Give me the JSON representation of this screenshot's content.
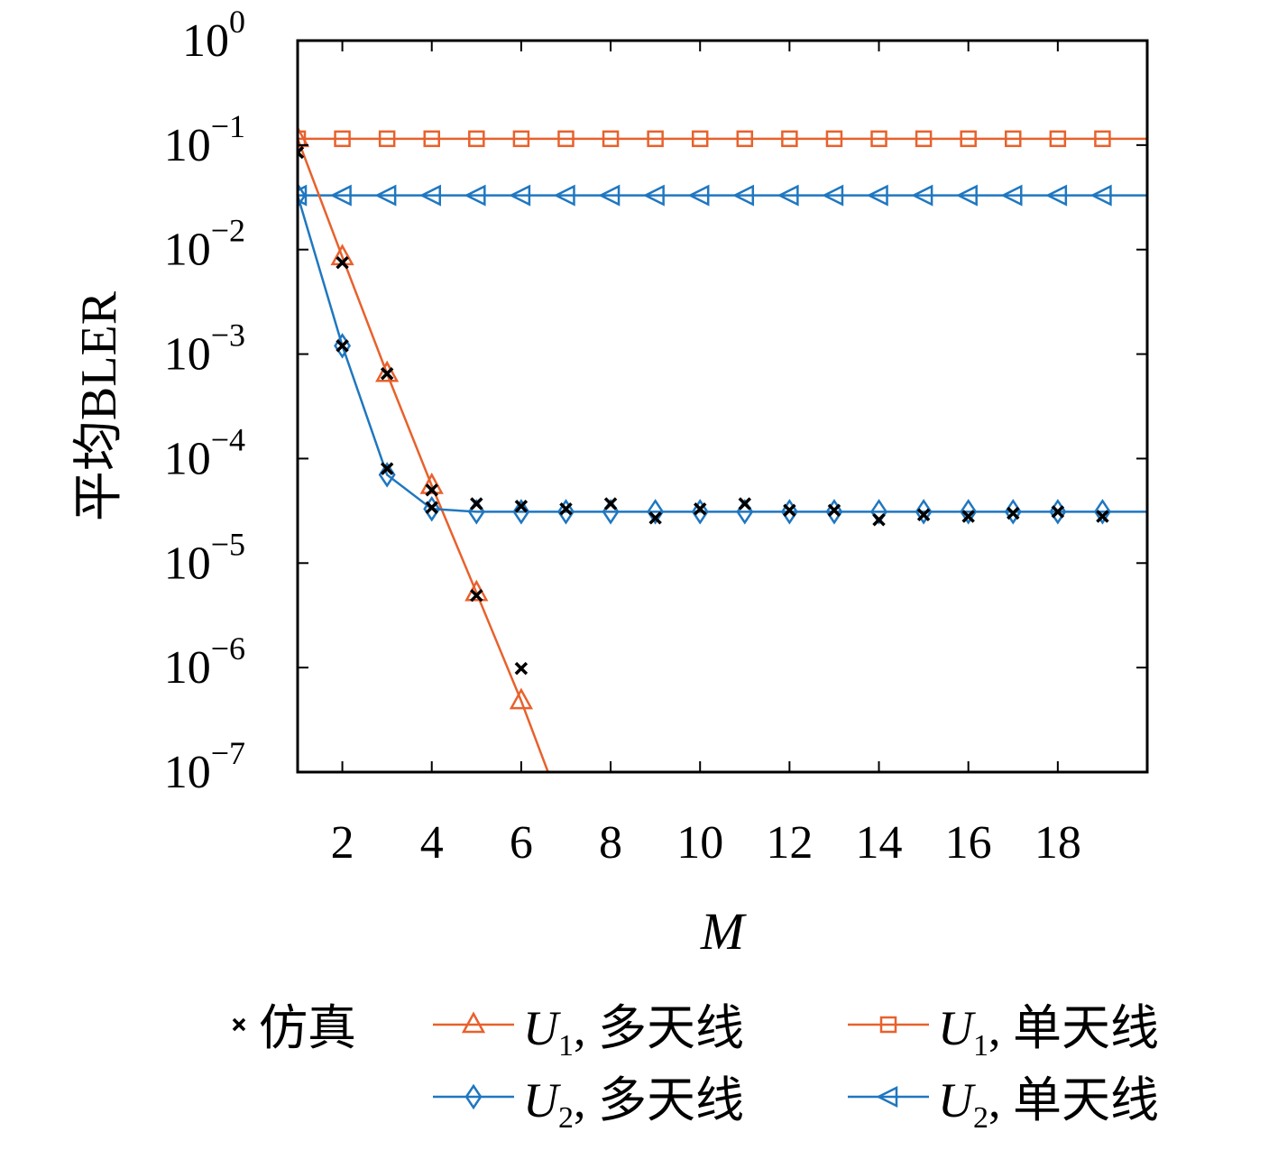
{
  "chart_data": {
    "type": "line",
    "title": "",
    "ylabel": "平均BLER",
    "xlabel": "M",
    "yscale": "log",
    "ylim": [
      1e-07,
      1
    ],
    "xlim": [
      1,
      20
    ],
    "xticks": [
      2,
      4,
      6,
      8,
      10,
      12,
      14,
      16,
      18
    ],
    "xtick_labels": [
      "2",
      "4",
      "6",
      "8",
      "10",
      "12",
      "14",
      "16",
      "18"
    ],
    "yticks": [
      1e-07,
      1e-06,
      1e-05,
      0.0001,
      0.001,
      0.01,
      0.1,
      1
    ],
    "ytick_base": "10",
    "ytick_exponents": [
      "−7",
      "−6",
      "−5",
      "−4",
      "−3",
      "−2",
      "−1",
      "0"
    ],
    "grid": false,
    "legend_position": "bottom",
    "colors": {
      "orange": "#e8612c",
      "blue": "#1f77c0",
      "sim": "#000000"
    },
    "legend": [
      {
        "key": "sim",
        "label": "仿真"
      },
      {
        "key": "u1_multi",
        "sym": "U",
        "sub": "1",
        "label": ", 多天线"
      },
      {
        "key": "u1_single",
        "sym": "U",
        "sub": "1",
        "label": ", 单天线"
      },
      {
        "key": "u2_multi",
        "sym": "U",
        "sub": "2",
        "label": ", 多天线"
      },
      {
        "key": "u2_single",
        "sym": "U",
        "sub": "2",
        "label": ", 单天线"
      }
    ],
    "series": [
      {
        "key": "u1_single",
        "color": "#e8612c",
        "marker": "square",
        "x": [
          1,
          2,
          3,
          4,
          5,
          6,
          7,
          8,
          9,
          10,
          11,
          12,
          13,
          14,
          15,
          16,
          17,
          18,
          19,
          20
        ],
        "y": [
          0.115,
          0.115,
          0.115,
          0.115,
          0.115,
          0.115,
          0.115,
          0.115,
          0.115,
          0.115,
          0.115,
          0.115,
          0.115,
          0.115,
          0.115,
          0.115,
          0.115,
          0.115,
          0.115,
          0.115
        ],
        "marker_x": [
          1,
          2,
          3,
          4,
          5,
          6,
          7,
          8,
          9,
          10,
          11,
          12,
          13,
          14,
          15,
          16,
          17,
          18,
          19
        ]
      },
      {
        "key": "u2_single",
        "color": "#1f77c0",
        "marker": "triangle-left",
        "x": [
          1,
          2,
          3,
          4,
          5,
          6,
          7,
          8,
          9,
          10,
          11,
          12,
          13,
          14,
          15,
          16,
          17,
          18,
          19,
          20
        ],
        "y": [
          0.033,
          0.033,
          0.033,
          0.033,
          0.033,
          0.033,
          0.033,
          0.033,
          0.033,
          0.033,
          0.033,
          0.033,
          0.033,
          0.033,
          0.033,
          0.033,
          0.033,
          0.033,
          0.033,
          0.033
        ],
        "marker_x": [
          1,
          2,
          3,
          4,
          5,
          6,
          7,
          8,
          9,
          10,
          11,
          12,
          13,
          14,
          15,
          16,
          17,
          18,
          19
        ]
      },
      {
        "key": "u1_multi",
        "color": "#e8612c",
        "marker": "triangle-up",
        "x": [
          1,
          2,
          3,
          4,
          5,
          6,
          6.6
        ],
        "y": [
          0.115,
          0.0085,
          0.00065,
          5.5e-05,
          5.2e-06,
          4.8e-07,
          1e-07
        ],
        "marker_x": [
          1,
          2,
          3,
          4,
          5,
          6
        ]
      },
      {
        "key": "u2_multi",
        "color": "#1f77c0",
        "marker": "diamond",
        "x": [
          1,
          2,
          3,
          4,
          5,
          6,
          7,
          8,
          9,
          10,
          11,
          12,
          13,
          14,
          15,
          16,
          17,
          18,
          19,
          20
        ],
        "y": [
          0.033,
          0.0012,
          7e-05,
          3.3e-05,
          3.1e-05,
          3.1e-05,
          3.1e-05,
          3.1e-05,
          3.1e-05,
          3.1e-05,
          3.1e-05,
          3.1e-05,
          3.1e-05,
          3.1e-05,
          3.1e-05,
          3.1e-05,
          3.1e-05,
          3.1e-05,
          3.1e-05,
          3.1e-05
        ],
        "marker_x": [
          1,
          2,
          3,
          4,
          5,
          6,
          7,
          8,
          9,
          10,
          11,
          12,
          13,
          14,
          15,
          16,
          17,
          18,
          19
        ]
      }
    ],
    "simulation": {
      "x": [
        1,
        2,
        2,
        3,
        3,
        4,
        4,
        5,
        5,
        6,
        6,
        7,
        8,
        9,
        10,
        11,
        12,
        13,
        14,
        15,
        16,
        17,
        18,
        19
      ],
      "y": [
        0.085,
        0.0075,
        0.0012,
        0.00065,
        8e-05,
        5e-05,
        3.4e-05,
        4.9e-06,
        3.7e-05,
        9.8e-07,
        3.5e-05,
        3.3e-05,
        3.7e-05,
        2.7e-05,
        3.3e-05,
        3.7e-05,
        3.2e-05,
        3.2e-05,
        2.6e-05,
        2.9e-05,
        2.8e-05,
        3e-05,
        3.1e-05,
        2.8e-05
      ]
    }
  }
}
